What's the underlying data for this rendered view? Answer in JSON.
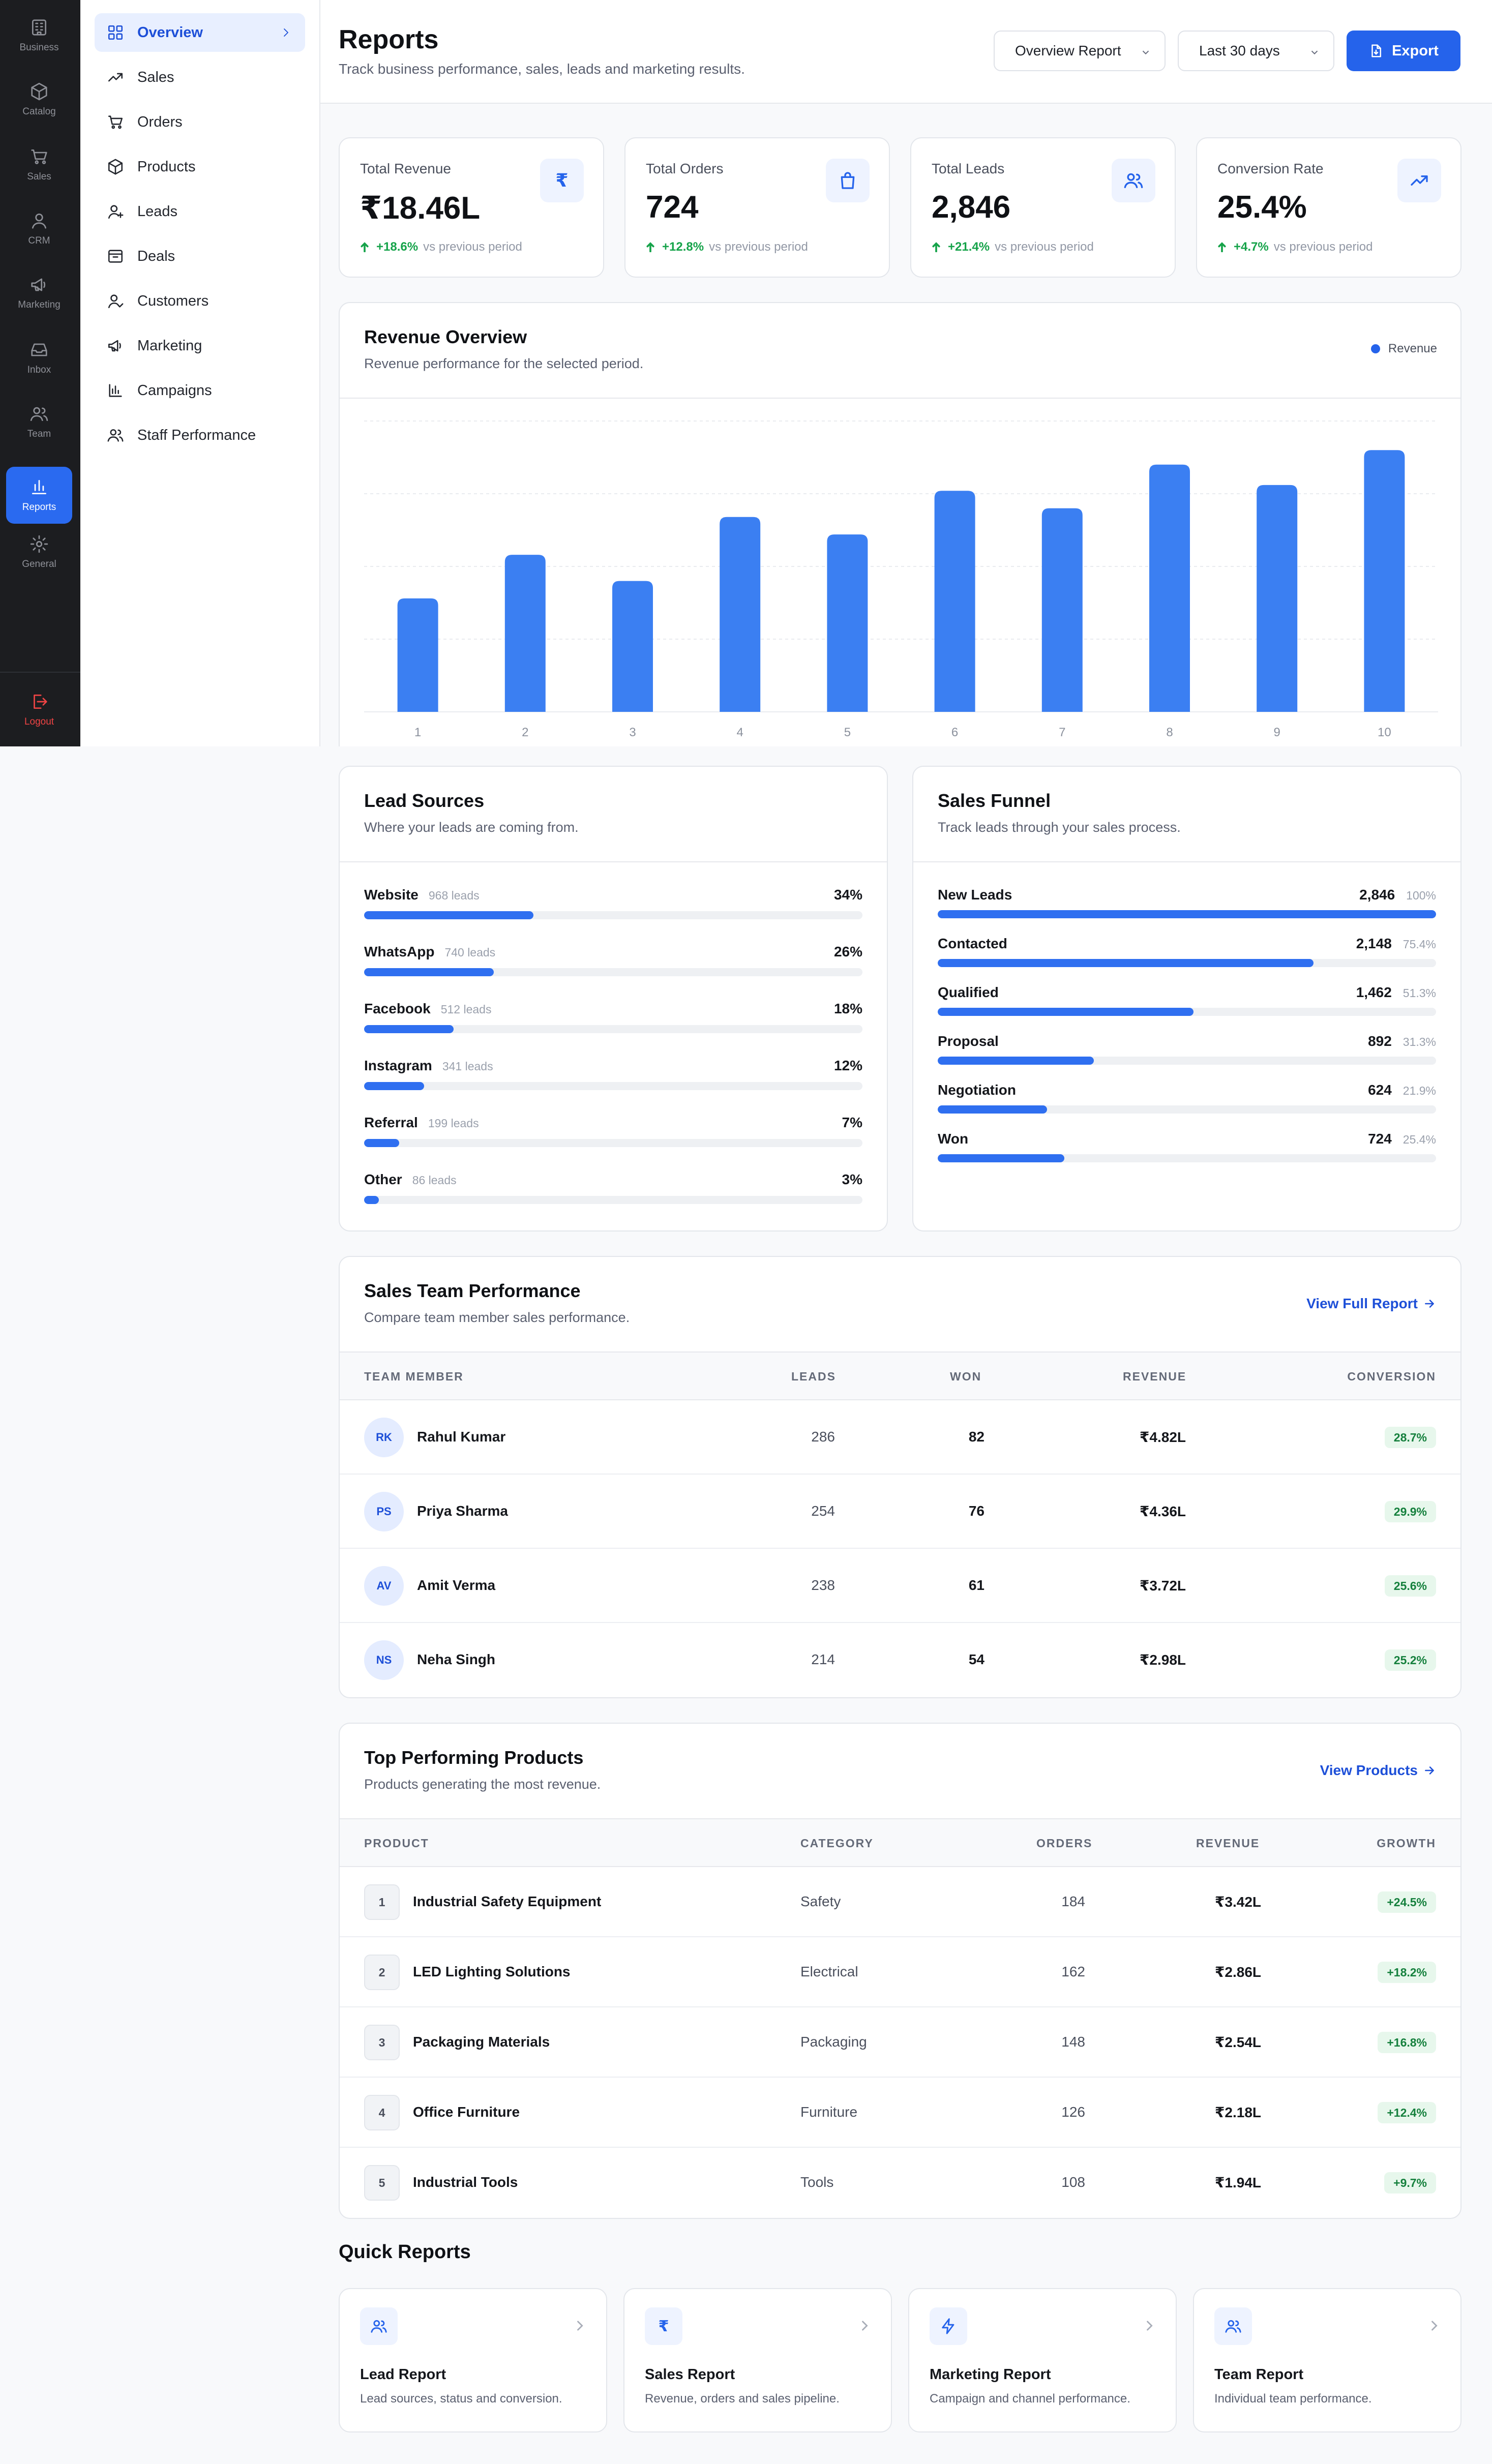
{
  "rail": {
    "items": [
      {
        "label": "Business",
        "icon": "building-icon"
      },
      {
        "label": "Catalog",
        "icon": "box-icon"
      },
      {
        "label": "Sales",
        "icon": "cart-icon"
      },
      {
        "label": "CRM",
        "icon": "user-icon"
      },
      {
        "label": "Marketing",
        "icon": "megaphone-icon"
      },
      {
        "label": "Inbox",
        "icon": "inbox-icon"
      },
      {
        "label": "Team",
        "icon": "users-icon"
      },
      {
        "label": "Reports",
        "icon": "bar-chart-icon"
      },
      {
        "label": "General",
        "icon": "gear-icon"
      }
    ],
    "logout": "Logout"
  },
  "submenu": {
    "items": [
      {
        "label": "Overview"
      },
      {
        "label": "Sales"
      },
      {
        "label": "Orders"
      },
      {
        "label": "Products"
      },
      {
        "label": "Leads"
      },
      {
        "label": "Deals"
      },
      {
        "label": "Customers"
      },
      {
        "label": "Marketing"
      },
      {
        "label": "Campaigns"
      },
      {
        "label": "Staff Performance"
      }
    ]
  },
  "header": {
    "title": "Reports",
    "subtitle": "Track business performance, sales, leads and marketing results.",
    "report_select": "Overview Report",
    "period_select": "Last 30 days",
    "export_label": "Export"
  },
  "kpis": [
    {
      "label": "Total Revenue",
      "value": "₹18.46L",
      "change": "+18.6%",
      "note": "vs previous period",
      "icon_text": "₹"
    },
    {
      "label": "Total Orders",
      "value": "724",
      "change": "+12.8%",
      "note": "vs previous period"
    },
    {
      "label": "Total Leads",
      "value": "2,846",
      "change": "+21.4%",
      "note": "vs previous period"
    },
    {
      "label": "Conversion Rate",
      "value": "25.4%",
      "change": "+4.7%",
      "note": "vs previous period"
    }
  ],
  "revenue": {
    "title": "Revenue Overview",
    "subtitle": "Revenue performance for the selected period.",
    "legend": "Revenue"
  },
  "chart_data": {
    "type": "bar",
    "title": "Revenue Overview",
    "categories": [
      "1",
      "2",
      "3",
      "4",
      "5",
      "6",
      "7",
      "8",
      "9",
      "10"
    ],
    "series": [
      {
        "name": "Revenue",
        "values": [
          39,
          54,
          45,
          67,
          61,
          76,
          70,
          85,
          78,
          90
        ]
      }
    ],
    "ylim": [
      0,
      100
    ],
    "grid": true,
    "legend": "top-right",
    "color": "#3b7ff2"
  },
  "lead_sources": {
    "title": "Lead Sources",
    "subtitle": "Where your leads are coming from.",
    "items": [
      {
        "name": "Website",
        "count": "968 leads",
        "pct": "34%",
        "value": 34
      },
      {
        "name": "WhatsApp",
        "count": "740 leads",
        "pct": "26%",
        "value": 26
      },
      {
        "name": "Facebook",
        "count": "512 leads",
        "pct": "18%",
        "value": 18
      },
      {
        "name": "Instagram",
        "count": "341 leads",
        "pct": "12%",
        "value": 12
      },
      {
        "name": "Referral",
        "count": "199 leads",
        "pct": "7%",
        "value": 7
      },
      {
        "name": "Other",
        "count": "86 leads",
        "pct": "3%",
        "value": 3
      }
    ]
  },
  "funnel": {
    "title": "Sales Funnel",
    "subtitle": "Track leads through your sales process.",
    "items": [
      {
        "name": "New Leads",
        "count": "2,846",
        "pct": "100%",
        "value": 100
      },
      {
        "name": "Contacted",
        "count": "2,148",
        "pct": "75.4%",
        "value": 75.4
      },
      {
        "name": "Qualified",
        "count": "1,462",
        "pct": "51.3%",
        "value": 51.3
      },
      {
        "name": "Proposal",
        "count": "892",
        "pct": "31.3%",
        "value": 31.3
      },
      {
        "name": "Negotiation",
        "count": "624",
        "pct": "21.9%",
        "value": 21.9
      },
      {
        "name": "Won",
        "count": "724",
        "pct": "25.4%",
        "value": 25.4
      }
    ]
  },
  "team": {
    "title": "Sales Team Performance",
    "subtitle": "Compare team member sales performance.",
    "link": "View Full Report",
    "columns": [
      "TEAM MEMBER",
      "LEADS",
      "WON",
      "REVENUE",
      "CONVERSION"
    ],
    "rows": [
      {
        "initials": "RK",
        "name": "Rahul Kumar",
        "leads": "286",
        "won": "82",
        "revenue": "₹4.82L",
        "conversion": "28.7%"
      },
      {
        "initials": "PS",
        "name": "Priya Sharma",
        "leads": "254",
        "won": "76",
        "revenue": "₹4.36L",
        "conversion": "29.9%"
      },
      {
        "initials": "AV",
        "name": "Amit Verma",
        "leads": "238",
        "won": "61",
        "revenue": "₹3.72L",
        "conversion": "25.6%"
      },
      {
        "initials": "NS",
        "name": "Neha Singh",
        "leads": "214",
        "won": "54",
        "revenue": "₹2.98L",
        "conversion": "25.2%"
      }
    ]
  },
  "products": {
    "title": "Top Performing Products",
    "subtitle": "Products generating the most revenue.",
    "link": "View Products",
    "columns": [
      "PRODUCT",
      "CATEGORY",
      "ORDERS",
      "REVENUE",
      "GROWTH"
    ],
    "rows": [
      {
        "rank": "1",
        "name": "Industrial Safety Equipment",
        "category": "Safety",
        "orders": "184",
        "revenue": "₹3.42L",
        "growth": "+24.5%"
      },
      {
        "rank": "2",
        "name": "LED Lighting Solutions",
        "category": "Electrical",
        "orders": "162",
        "revenue": "₹2.86L",
        "growth": "+18.2%"
      },
      {
        "rank": "3",
        "name": "Packaging Materials",
        "category": "Packaging",
        "orders": "148",
        "revenue": "₹2.54L",
        "growth": "+16.8%"
      },
      {
        "rank": "4",
        "name": "Office Furniture",
        "category": "Furniture",
        "orders": "126",
        "revenue": "₹2.18L",
        "growth": "+12.4%"
      },
      {
        "rank": "5",
        "name": "Industrial Tools",
        "category": "Tools",
        "orders": "108",
        "revenue": "₹1.94L",
        "growth": "+9.7%"
      }
    ]
  },
  "quick_reports": {
    "title": "Quick Reports",
    "items": [
      {
        "name": "Lead Report",
        "desc": "Lead sources, status and conversion."
      },
      {
        "name": "Sales Report",
        "desc": "Revenue, orders and sales pipeline.",
        "icon_text": "₹"
      },
      {
        "name": "Marketing Report",
        "desc": "Campaign and channel performance."
      },
      {
        "name": "Team Report",
        "desc": "Individual team performance."
      }
    ]
  }
}
